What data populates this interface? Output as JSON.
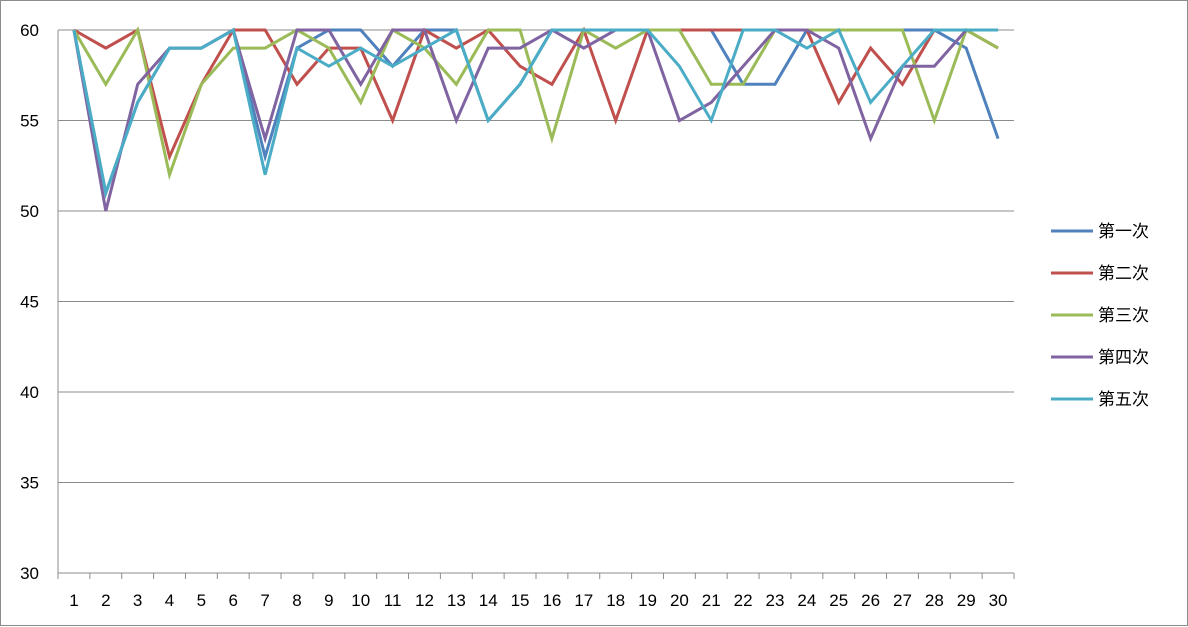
{
  "chart_data": {
    "type": "line",
    "title": "",
    "xlabel": "",
    "ylabel": "",
    "x": [
      "1",
      "2",
      "3",
      "4",
      "5",
      "6",
      "7",
      "8",
      "9",
      "10",
      "11",
      "12",
      "13",
      "14",
      "15",
      "16",
      "17",
      "18",
      "19",
      "20",
      "21",
      "22",
      "23",
      "24",
      "25",
      "26",
      "27",
      "28",
      "29",
      "30"
    ],
    "ylim": [
      30,
      60
    ],
    "yticks": [
      30,
      35,
      40,
      45,
      50,
      55,
      60
    ],
    "grid": true,
    "legend_position": "right",
    "series": [
      {
        "name": "第一次",
        "color": "#4f81bd",
        "values": [
          60,
          51,
          56,
          59,
          59,
          60,
          53,
          59,
          60,
          60,
          58,
          60,
          60,
          55,
          57,
          60,
          60,
          60,
          60,
          60,
          60,
          57,
          57,
          60,
          60,
          60,
          60,
          60,
          59,
          54
        ]
      },
      {
        "name": "第二次",
        "color": "#c0504d",
        "values": [
          60,
          59,
          60,
          53,
          57,
          60,
          60,
          57,
          59,
          59,
          55,
          60,
          59,
          60,
          58,
          57,
          60,
          55,
          60,
          60,
          60,
          60,
          60,
          60,
          56,
          59,
          57,
          60,
          60,
          59
        ]
      },
      {
        "name": "第三次",
        "color": "#9bbb59",
        "values": [
          60,
          57,
          60,
          52,
          57,
          59,
          59,
          60,
          59,
          56,
          60,
          59,
          57,
          60,
          60,
          54,
          60,
          59,
          60,
          60,
          57,
          57,
          60,
          60,
          60,
          60,
          60,
          55,
          60,
          59
        ]
      },
      {
        "name": "第四次",
        "color": "#8064a2",
        "values": [
          60,
          50,
          57,
          59,
          59,
          60,
          54,
          60,
          60,
          57,
          60,
          60,
          55,
          59,
          59,
          60,
          59,
          60,
          60,
          55,
          56,
          58,
          60,
          60,
          59,
          54,
          58,
          58,
          60,
          60
        ]
      },
      {
        "name": "第五次",
        "color": "#4bacc6",
        "values": [
          60,
          51,
          56,
          59,
          59,
          60,
          52,
          59,
          58,
          59,
          58,
          59,
          60,
          55,
          57,
          60,
          60,
          60,
          60,
          58,
          55,
          60,
          60,
          59,
          60,
          56,
          58,
          60,
          60,
          60
        ]
      }
    ]
  }
}
